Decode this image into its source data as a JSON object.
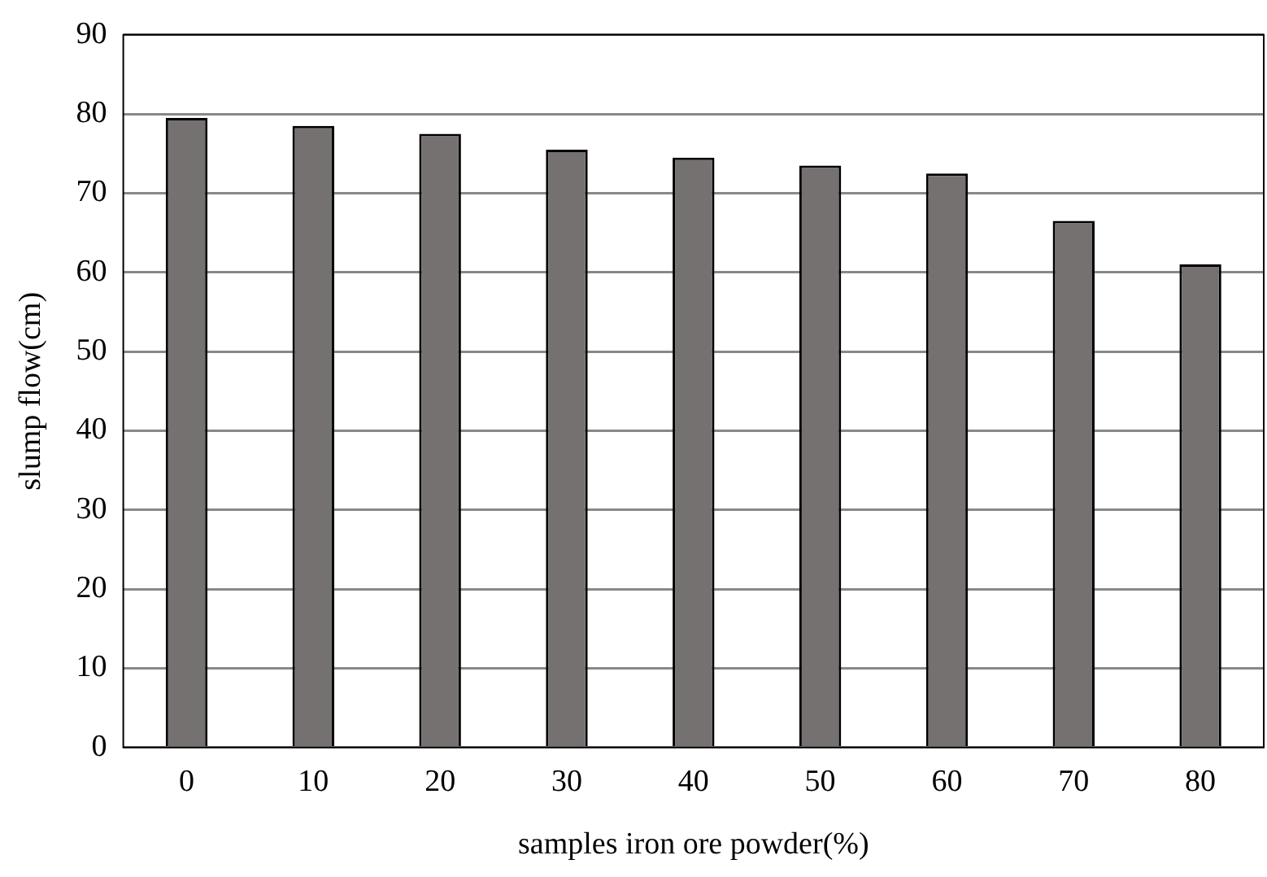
{
  "chart_data": {
    "type": "bar",
    "xlabel": "samples iron ore powder(%)",
    "ylabel": "slump flow(cm)",
    "categories": [
      "0",
      "10",
      "20",
      "30",
      "40",
      "50",
      "60",
      "70",
      "80"
    ],
    "values": [
      79.5,
      78.5,
      77.5,
      75.5,
      74.5,
      73.5,
      72.5,
      66.5,
      61
    ],
    "color": "#767171",
    "ylim": [
      0,
      90
    ],
    "yticks": [
      0,
      10,
      20,
      30,
      40,
      50,
      60,
      70,
      80,
      90
    ],
    "grid": "y",
    "legend": false
  }
}
